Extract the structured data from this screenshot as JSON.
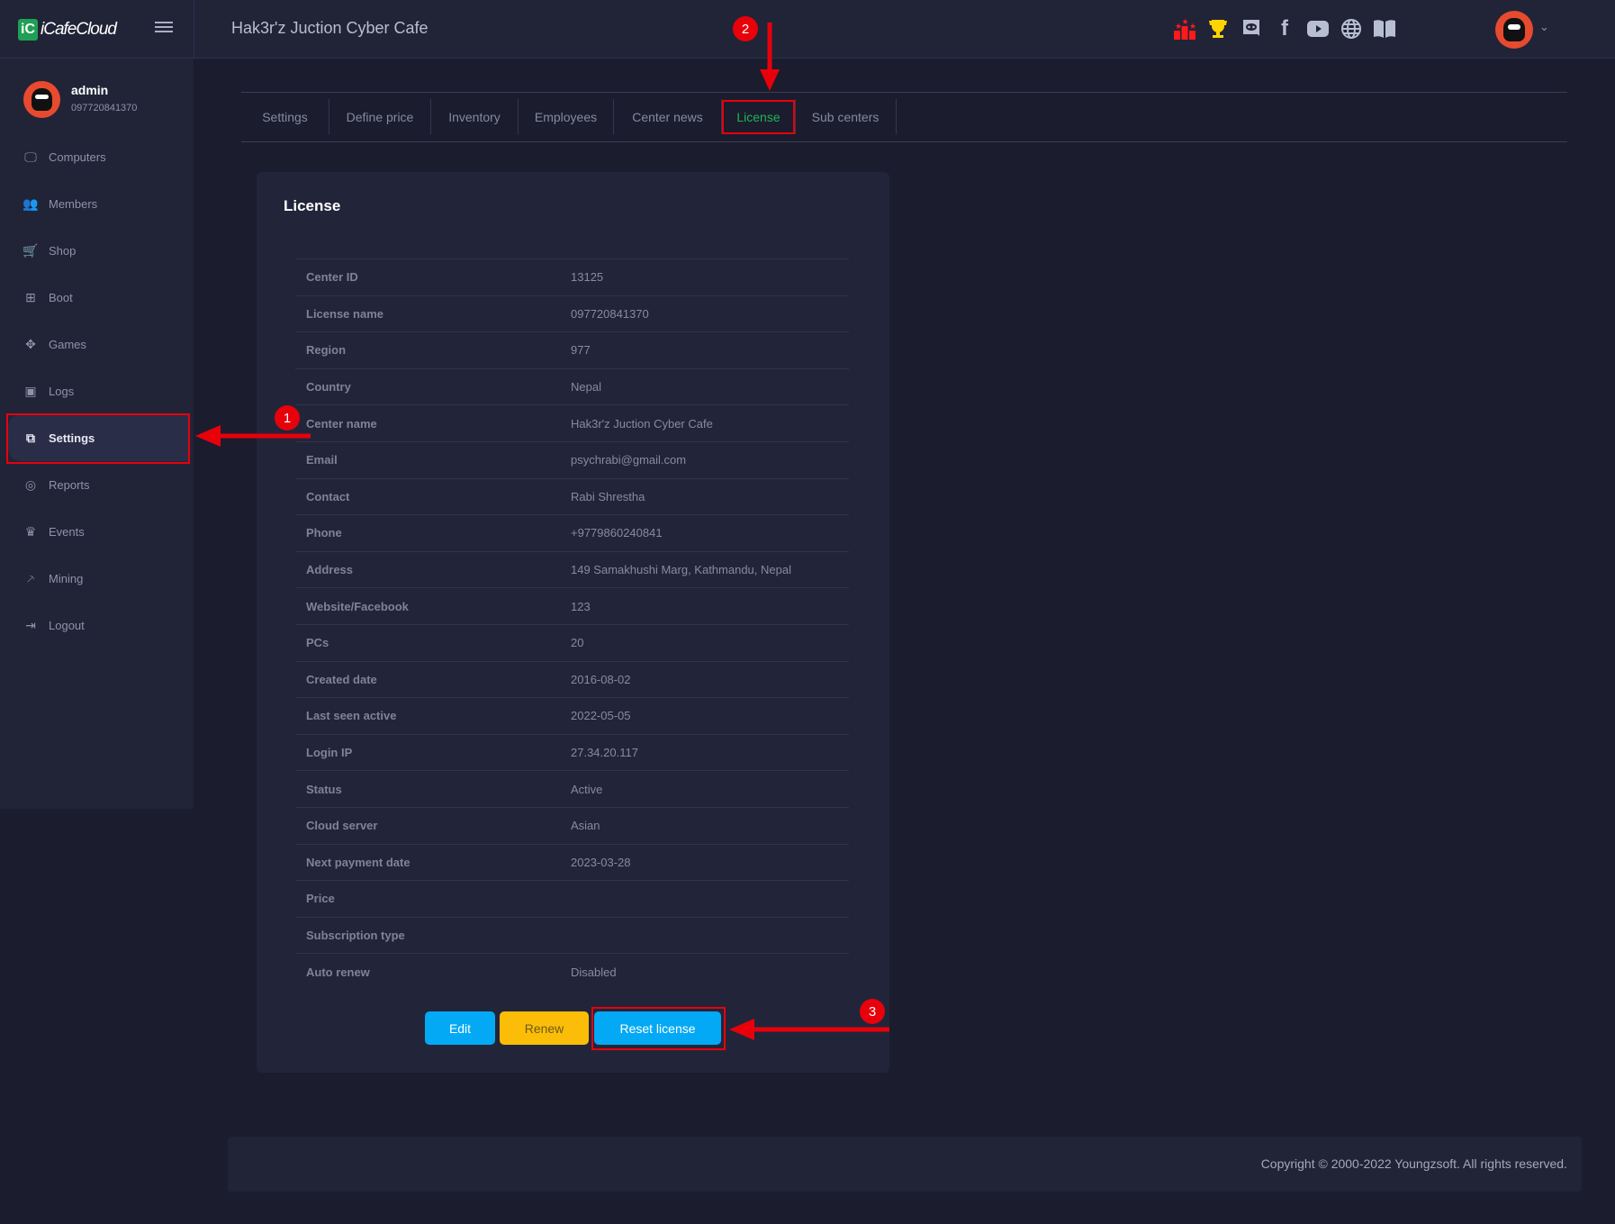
{
  "header": {
    "brand": "iCafeCloud",
    "brand_mark": "iC",
    "cafe_title": "Hak3r'z Juction Cyber Cafe",
    "icons": [
      "leaderboard-icon",
      "trophy-icon",
      "discord-icon",
      "facebook-icon",
      "youtube-icon",
      "globe-icon",
      "book-icon"
    ],
    "colors": {
      "leaderboard": "#ff1a1a",
      "trophy": "#ffd400",
      "accent": "#1fa055"
    }
  },
  "user": {
    "name": "admin",
    "id": "097720841370"
  },
  "sidebar": {
    "items": [
      {
        "label": "Computers",
        "icon": "monitor-icon"
      },
      {
        "label": "Members",
        "icon": "members-icon"
      },
      {
        "label": "Shop",
        "icon": "cart-icon"
      },
      {
        "label": "Boot",
        "icon": "windows-icon"
      },
      {
        "label": "Games",
        "icon": "gamepad-icon"
      },
      {
        "label": "Logs",
        "icon": "calendar-icon"
      },
      {
        "label": "Settings",
        "icon": "settings-copy-icon",
        "active": true
      },
      {
        "label": "Reports",
        "icon": "award-icon"
      },
      {
        "label": "Events",
        "icon": "crown-icon"
      },
      {
        "label": "Mining",
        "icon": "pickaxe-icon"
      },
      {
        "label": "Logout",
        "icon": "logout-icon"
      }
    ]
  },
  "tabs": [
    {
      "label": "Settings"
    },
    {
      "label": "Define price"
    },
    {
      "label": "Inventory"
    },
    {
      "label": "Employees"
    },
    {
      "label": "Center news"
    },
    {
      "label": "License",
      "active": true
    },
    {
      "label": "Sub centers"
    }
  ],
  "license": {
    "title": "License",
    "rows": [
      {
        "key": "Center ID",
        "value": "13125"
      },
      {
        "key": "License name",
        "value": "097720841370"
      },
      {
        "key": "Region",
        "value": "977"
      },
      {
        "key": "Country",
        "value": "Nepal"
      },
      {
        "key": "Center name",
        "value": "Hak3r'z Juction Cyber Cafe"
      },
      {
        "key": "Email",
        "value": "psychrabi@gmail.com"
      },
      {
        "key": "Contact",
        "value": "Rabi Shrestha"
      },
      {
        "key": "Phone",
        "value": "+9779860240841"
      },
      {
        "key": "Address",
        "value": "149 Samakhushi Marg, Kathmandu, Nepal"
      },
      {
        "key": "Website/Facebook",
        "value": "123"
      },
      {
        "key": "PCs",
        "value": "20"
      },
      {
        "key": "Created date",
        "value": "2016-08-02"
      },
      {
        "key": "Last seen active",
        "value": "2022-05-05"
      },
      {
        "key": "Login IP",
        "value": "27.34.20.117"
      },
      {
        "key": "Status",
        "value": "Active"
      },
      {
        "key": "Cloud server",
        "value": "Asian"
      },
      {
        "key": "Next payment date",
        "value": "2023-03-28"
      },
      {
        "key": "Price",
        "value": ""
      },
      {
        "key": "Subscription type",
        "value": ""
      },
      {
        "key": "Auto renew",
        "value": "Disabled"
      }
    ],
    "buttons": {
      "edit": "Edit",
      "renew": "Renew",
      "reset": "Reset license"
    },
    "colors": {
      "edit": "#03a9f4",
      "renew": "#fbbd08",
      "reset": "#03a9f4"
    }
  },
  "annotations": {
    "one": "1",
    "two": "2",
    "three": "3",
    "color": "#e8000b"
  },
  "footer": {
    "copyright": "Copyright © 2000-2022 Youngzsoft. All rights reserved."
  }
}
